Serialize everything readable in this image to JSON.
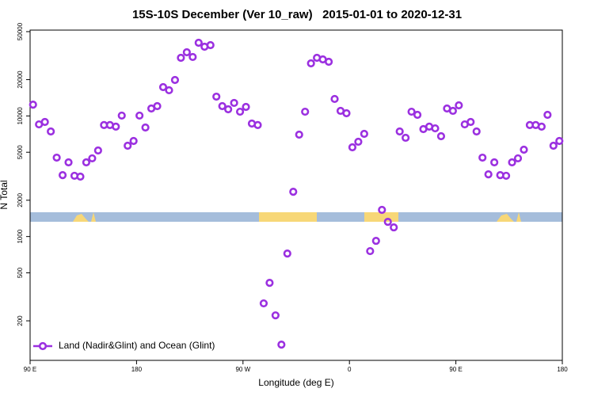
{
  "chart_data": {
    "type": "scatter",
    "title": "15S-10S December (Ver 10_raw)   2015-01-01 to 2020-12-31",
    "xlabel": "Longitude (deg E)",
    "ylabel": "N Total",
    "log_y": true,
    "legend": "bottom-left",
    "xlim": [
      90,
      540
    ],
    "ylim": [
      94,
      51500
    ],
    "xticks": [
      {
        "value": 90,
        "label": "90 E"
      },
      180,
      {
        "value": 270,
        "label": "90 W"
      },
      {
        "value": 360,
        "label": "0"
      },
      {
        "value": 450,
        "label": "90 E"
      },
      {
        "value": 540,
        "label": "180"
      }
    ],
    "yticks": [
      200,
      500,
      1000,
      2000,
      5000,
      10000,
      20000,
      50000
    ],
    "series": [
      {
        "name": "Land (Nadir&Glint) and Ocean (Glint)",
        "color": "#9b30e0",
        "x": [
          92.5,
          97.5,
          102.5,
          107.5,
          112.5,
          117.5,
          122.5,
          127.5,
          132.5,
          137.5,
          142.5,
          147.5,
          152.5,
          157.5,
          162.5,
          167.5,
          172.5,
          177.5,
          182.5,
          187.5,
          192.5,
          197.5,
          202.5,
          207.5,
          212.5,
          217.5,
          222.5,
          227.5,
          232.5,
          237.5,
          242.5,
          247.5,
          252.5,
          257.5,
          262.5,
          267.5,
          272.5,
          277.5,
          282.5,
          287.5,
          292.5,
          297.5,
          302.5,
          307.5,
          312.5,
          317.5,
          322.5,
          327.5,
          332.5,
          337.5,
          342.5,
          347.5,
          352.5,
          357.5,
          362.5,
          367.5,
          372.5,
          377.5,
          382.5,
          387.5,
          392.5,
          397.5,
          402.5,
          407.5,
          412.5,
          417.5,
          422.5,
          427.5,
          432.5,
          437.5,
          442.5,
          447.5,
          452.5,
          457.5,
          462.5,
          467.5,
          472.5,
          477.5,
          482.5,
          487.5,
          492.5,
          497.5,
          502.5,
          507.5,
          512.5,
          517.5,
          522.5,
          527.5,
          532.5,
          537.5
        ],
        "values": [
          12400,
          8510,
          8910,
          7430,
          4510,
          3230,
          4120,
          3190,
          3140,
          4120,
          4450,
          5170,
          8400,
          8400,
          8150,
          10070,
          5660,
          6200,
          10070,
          8020,
          11530,
          12060,
          17340,
          16330,
          19870,
          30340,
          33730,
          30820,
          40450,
          37500,
          38640,
          14450,
          12060,
          11350,
          12820,
          10840,
          11880,
          8650,
          8400,
          279,
          413,
          222,
          127,
          723,
          2350,
          7000,
          10840,
          27300,
          30340,
          29440,
          28120,
          13830,
          11020,
          10520,
          5490,
          6110,
          7100,
          757,
          921,
          1663,
          1324,
          1191,
          7430,
          6590,
          10840,
          10210,
          7780,
          8150,
          7890,
          6790,
          11530,
          11020,
          12240,
          8510,
          8910,
          7430,
          4510,
          3280,
          4120,
          3230,
          3190,
          4120,
          4450,
          5250,
          8400,
          8400,
          8150,
          10210,
          5660,
          6200
        ]
      }
    ]
  }
}
